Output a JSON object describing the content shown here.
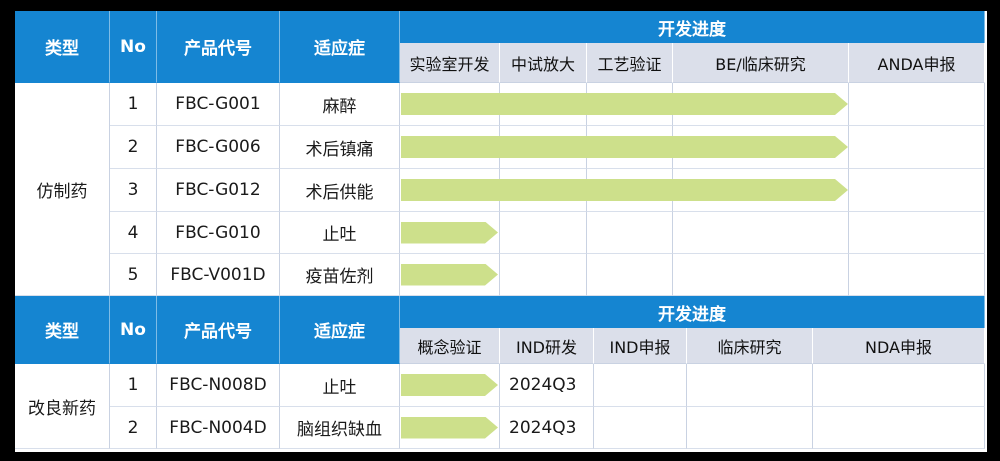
{
  "colors": {
    "header_blue": "#1585D1",
    "stage_header_bg": "#DBDFEA",
    "arrow_green": "#CDE08B",
    "grid_line": "#C9D2E2",
    "table_bg": "#FFFFFF",
    "background": "#000000",
    "header_text": "#FFFFFF",
    "body_text": "#1A1A1A"
  },
  "table": {
    "sections": [
      {
        "category": "仿制药",
        "header": {
          "type": "类型",
          "no": "No",
          "code": "产品代号",
          "indication": "适应症",
          "progress": "开发进度"
        },
        "stages": [
          "实验室开发",
          "中试放大",
          "工艺验证",
          "BE/临床研究",
          "ANDA申报"
        ],
        "rows": [
          {
            "no": "1",
            "code": "FBC-G001",
            "indication": "麻醉",
            "arrow_width": 447,
            "note": ""
          },
          {
            "no": "2",
            "code": "FBC-G006",
            "indication": "术后镇痛",
            "arrow_width": 447,
            "note": ""
          },
          {
            "no": "3",
            "code": "FBC-G012",
            "indication": "术后供能",
            "arrow_width": 447,
            "note": ""
          },
          {
            "no": "4",
            "code": "FBC-G010",
            "indication": "止吐",
            "arrow_width": 97,
            "note": ""
          },
          {
            "no": "5",
            "code": "FBC-V001D",
            "indication": "疫苗佐剂",
            "arrow_width": 97,
            "note": ""
          }
        ]
      },
      {
        "category": "改良新药",
        "header": {
          "type": "类型",
          "no": "No",
          "code": "产品代号",
          "indication": "适应症",
          "progress": "开发进度"
        },
        "stages": [
          "概念验证",
          "IND研发",
          "IND申报",
          "临床研究",
          "NDA申报"
        ],
        "rows": [
          {
            "no": "1",
            "code": "FBC-N008D",
            "indication": "止吐",
            "arrow_width": 97,
            "note": "2024Q3"
          },
          {
            "no": "2",
            "code": "FBC-N004D",
            "indication": "脑组织缺血",
            "arrow_width": 97,
            "note": "2024Q3"
          }
        ]
      }
    ]
  },
  "chart_data": {
    "type": "table",
    "title": "开发进度",
    "sections": [
      {
        "category": "仿制药",
        "stages": [
          "实验室开发",
          "中试放大",
          "工艺验证",
          "BE/临床研究",
          "ANDA申报"
        ],
        "rows": [
          {
            "no": 1,
            "code": "FBC-G001",
            "indication": "麻醉",
            "stages_completed": 4,
            "progress_through_stage": "BE/临床研究",
            "milestone": ""
          },
          {
            "no": 2,
            "code": "FBC-G006",
            "indication": "术后镇痛",
            "stages_completed": 4,
            "progress_through_stage": "BE/临床研究",
            "milestone": ""
          },
          {
            "no": 3,
            "code": "FBC-G012",
            "indication": "术后供能",
            "stages_completed": 4,
            "progress_through_stage": "BE/临床研究",
            "milestone": ""
          },
          {
            "no": 4,
            "code": "FBC-G010",
            "indication": "止吐",
            "stages_completed": 1,
            "progress_through_stage": "实验室开发",
            "milestone": ""
          },
          {
            "no": 5,
            "code": "FBC-V001D",
            "indication": "疫苗佐剂",
            "stages_completed": 1,
            "progress_through_stage": "实验室开发",
            "milestone": ""
          }
        ]
      },
      {
        "category": "改良新药",
        "stages": [
          "概念验证",
          "IND研发",
          "IND申报",
          "临床研究",
          "NDA申报"
        ],
        "rows": [
          {
            "no": 1,
            "code": "FBC-N008D",
            "indication": "止吐",
            "stages_completed": 1,
            "progress_through_stage": "概念验证",
            "milestone": "2024Q3"
          },
          {
            "no": 2,
            "code": "FBC-N004D",
            "indication": "脑组织缺血",
            "stages_completed": 1,
            "progress_through_stage": "概念验证",
            "milestone": "2024Q3"
          }
        ]
      }
    ]
  }
}
